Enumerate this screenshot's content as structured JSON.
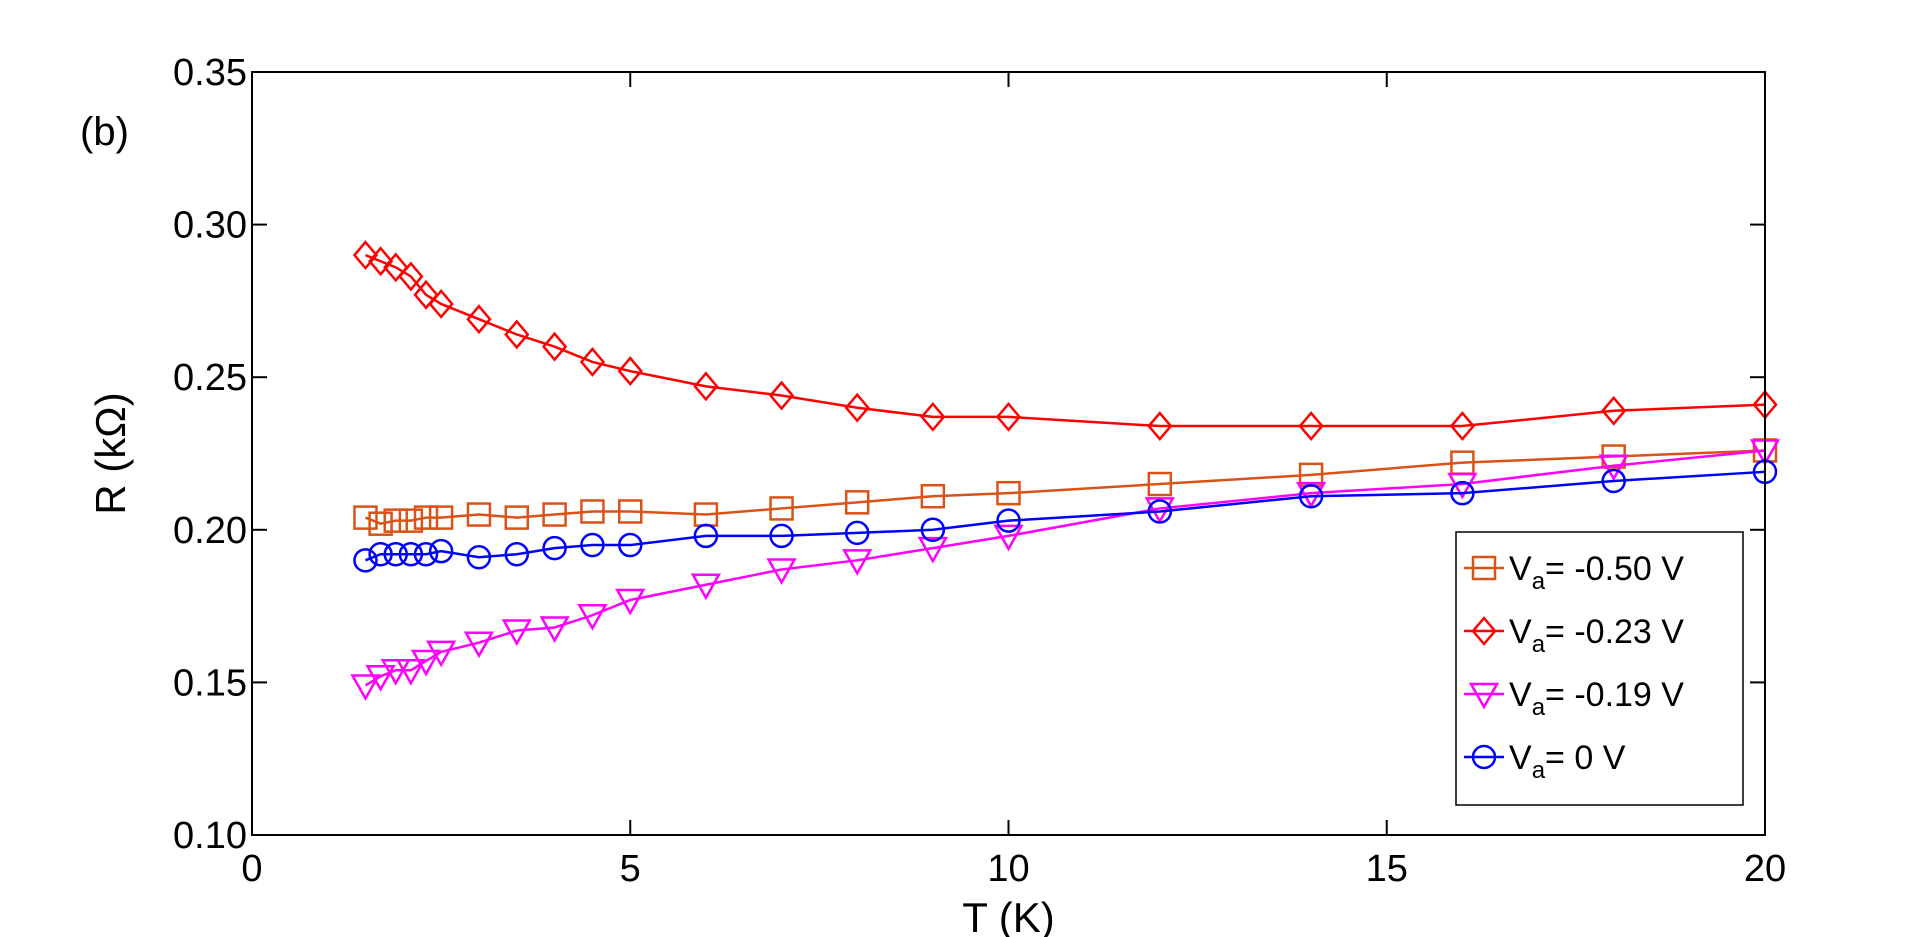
{
  "chart_data": {
    "type": "line",
    "panel_label": "(b)",
    "xlabel": "T (K)",
    "ylabel": "R (kΩ)",
    "xlim": [
      0,
      20
    ],
    "ylim": [
      0.1,
      0.35
    ],
    "xticks": [
      0,
      5,
      10,
      15,
      20
    ],
    "xtick_labels": [
      "0",
      "5",
      "10",
      "15",
      "20"
    ],
    "yticks": [
      0.1,
      0.15,
      0.2,
      0.25,
      0.3,
      0.35
    ],
    "ytick_labels": [
      "0.10",
      "0.15",
      "0.20",
      "0.25",
      "0.30",
      "0.35"
    ],
    "grid": false,
    "legend_position": "lower-right",
    "series": [
      {
        "name": "Va= -0.50 V",
        "legend_main": "V",
        "legend_sub": "a",
        "legend_rest": "= -0.50 V",
        "marker": "square",
        "color": "#d95319",
        "x": [
          1.5,
          1.7,
          1.9,
          2.1,
          2.3,
          2.5,
          3,
          3.5,
          4,
          4.5,
          5,
          6,
          7,
          8,
          9,
          10,
          12,
          14,
          16,
          18,
          20
        ],
        "y": [
          0.204,
          0.202,
          0.203,
          0.203,
          0.204,
          0.204,
          0.205,
          0.204,
          0.205,
          0.206,
          0.206,
          0.205,
          0.207,
          0.209,
          0.211,
          0.212,
          0.215,
          0.218,
          0.222,
          0.224,
          0.226
        ]
      },
      {
        "name": "Va= -0.23 V",
        "legend_main": "V",
        "legend_sub": "a",
        "legend_rest": "= -0.23 V",
        "marker": "diamond",
        "color": "#ff0000",
        "x": [
          1.5,
          1.7,
          1.9,
          2.1,
          2.3,
          2.5,
          3,
          3.5,
          4,
          4.5,
          5,
          6,
          7,
          8,
          9,
          10,
          12,
          14,
          16,
          18,
          20
        ],
        "y": [
          0.29,
          0.288,
          0.286,
          0.283,
          0.277,
          0.274,
          0.269,
          0.264,
          0.26,
          0.255,
          0.252,
          0.247,
          0.244,
          0.24,
          0.237,
          0.237,
          0.234,
          0.234,
          0.234,
          0.239,
          0.241
        ]
      },
      {
        "name": "Va= -0.19 V",
        "legend_main": "V",
        "legend_sub": "a",
        "legend_rest": "= -0.19 V",
        "marker": "triangle-down",
        "color": "#ff00ff",
        "x": [
          1.5,
          1.7,
          1.9,
          2.1,
          2.3,
          2.5,
          3,
          3.5,
          4,
          4.5,
          5,
          6,
          7,
          8,
          9,
          10,
          12,
          14,
          16,
          18,
          20
        ],
        "y": [
          0.149,
          0.152,
          0.154,
          0.154,
          0.157,
          0.16,
          0.163,
          0.167,
          0.168,
          0.172,
          0.177,
          0.182,
          0.187,
          0.19,
          0.194,
          0.198,
          0.207,
          0.212,
          0.215,
          0.221,
          0.226
        ]
      },
      {
        "name": "Va= 0 V",
        "legend_main": "V",
        "legend_sub": "a",
        "legend_rest": "= 0 V",
        "marker": "circle",
        "color": "#0000ff",
        "x": [
          1.5,
          1.7,
          1.9,
          2.1,
          2.3,
          2.5,
          3,
          3.5,
          4,
          4.5,
          5,
          6,
          7,
          8,
          9,
          10,
          12,
          14,
          16,
          18,
          20
        ],
        "y": [
          0.19,
          0.192,
          0.192,
          0.192,
          0.192,
          0.193,
          0.191,
          0.192,
          0.194,
          0.195,
          0.195,
          0.198,
          0.198,
          0.199,
          0.2,
          0.203,
          0.206,
          0.211,
          0.212,
          0.216,
          0.219
        ]
      }
    ]
  }
}
